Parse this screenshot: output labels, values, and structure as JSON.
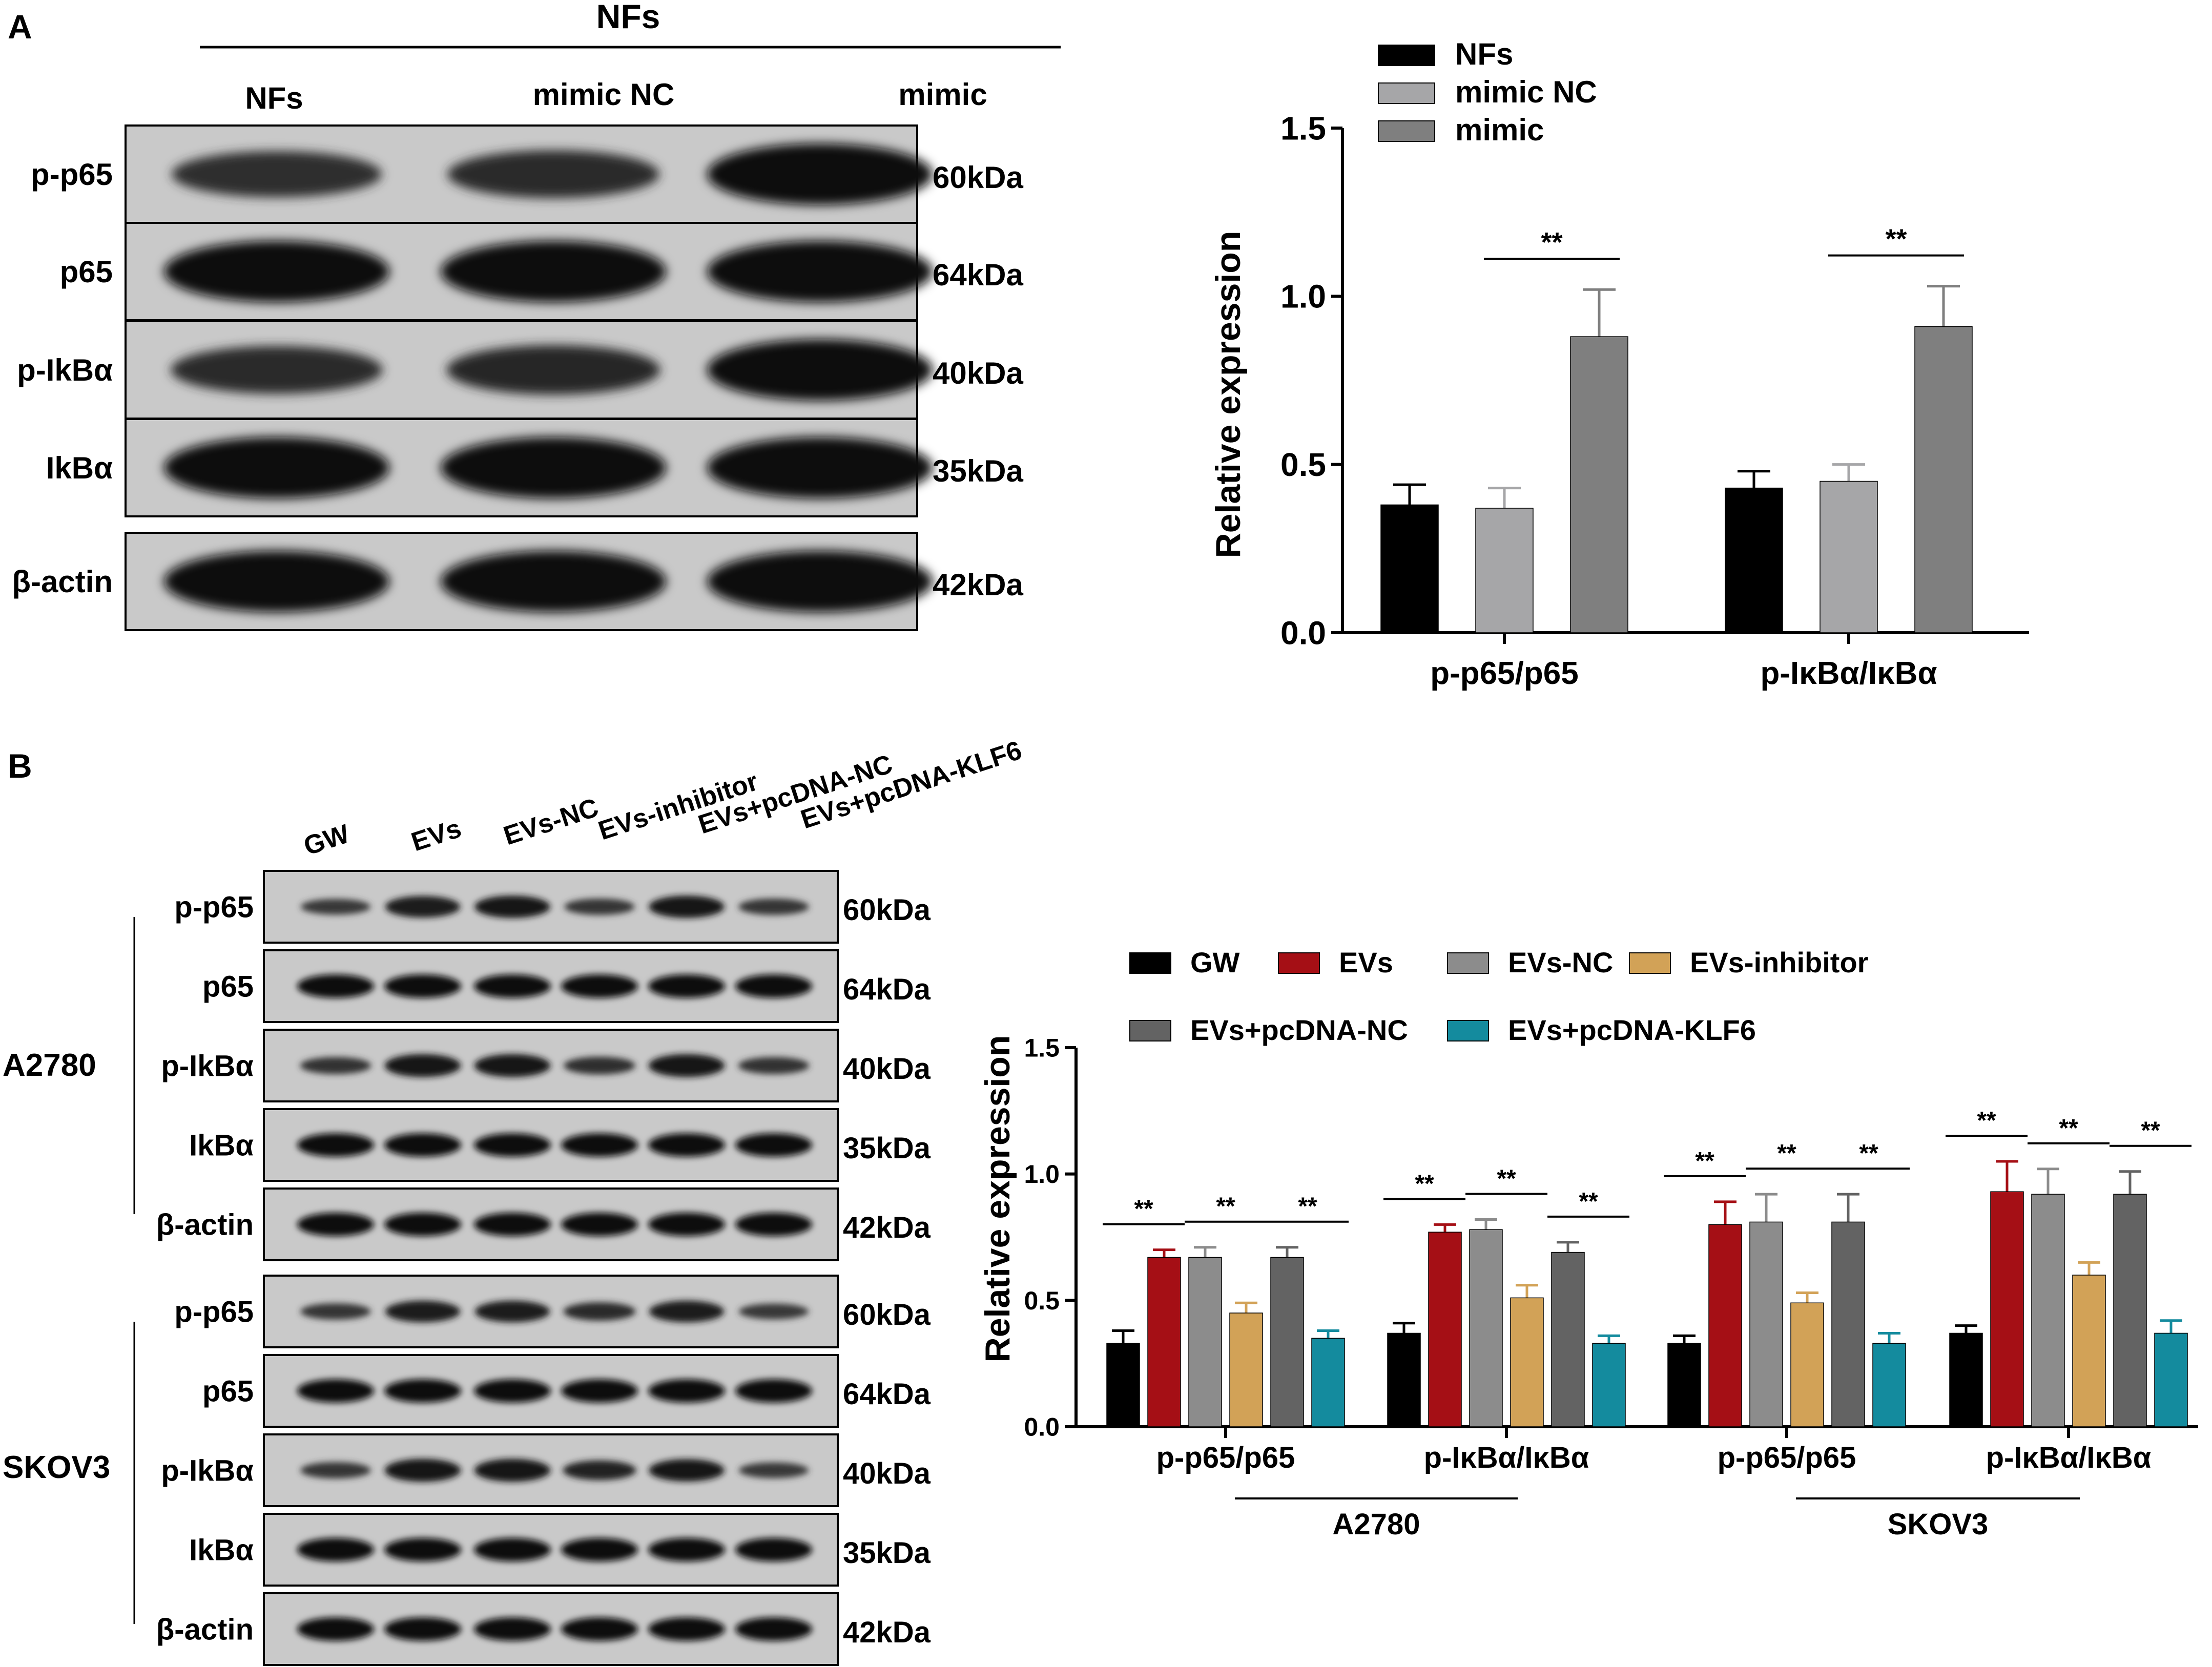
{
  "panel_a": {
    "letter": "A",
    "group_header": "NFs",
    "lane_labels": [
      "NFs",
      "mimic NC",
      "mimic"
    ],
    "blots": [
      {
        "label": "p-p65",
        "size": "60kDa",
        "intensity": [
          0.55,
          0.6,
          1.0
        ]
      },
      {
        "label": "p65",
        "size": "64kDa",
        "intensity": [
          1.0,
          1.0,
          1.0
        ]
      },
      {
        "label": "p-IkBα",
        "size": "40kDa",
        "intensity": [
          0.6,
          0.65,
          1.0
        ]
      },
      {
        "label": "IkBα",
        "size": "35kDa",
        "intensity": [
          1.0,
          1.0,
          1.0
        ]
      },
      {
        "label": "β-actin",
        "size": "42kDa",
        "intensity": [
          1.0,
          1.0,
          1.0
        ]
      }
    ]
  },
  "panel_b": {
    "letter": "B",
    "lane_labels": [
      "GW",
      "EVs",
      "EVs-NC",
      "EVs-inhibitor",
      "EVs+pcDNA-NC",
      "EVs+pcDNA-KLF6"
    ],
    "cell_lines": [
      {
        "name": "A2780",
        "blots": [
          {
            "label": "p-p65",
            "size": "60kDa",
            "intensity": [
              0.4,
              0.85,
              0.9,
              0.45,
              0.9,
              0.45
            ]
          },
          {
            "label": "p65",
            "size": "64kDa",
            "intensity": [
              1,
              1,
              1,
              1,
              1,
              1
            ]
          },
          {
            "label": "p-IkBα",
            "size": "40kDa",
            "intensity": [
              0.5,
              0.95,
              0.95,
              0.55,
              0.95,
              0.5
            ]
          },
          {
            "label": "IkBα",
            "size": "35kDa",
            "intensity": [
              1,
              1,
              1,
              1,
              1,
              1
            ]
          },
          {
            "label": "β-actin",
            "size": "42kDa",
            "intensity": [
              1,
              1,
              1,
              1,
              1,
              1
            ]
          }
        ]
      },
      {
        "name": "SKOV3",
        "blots": [
          {
            "label": "p-p65",
            "size": "60kDa",
            "intensity": [
              0.45,
              0.85,
              0.85,
              0.6,
              0.85,
              0.4
            ]
          },
          {
            "label": "p65",
            "size": "64kDa",
            "intensity": [
              1,
              1,
              1,
              1,
              1,
              1
            ]
          },
          {
            "label": "p-IkBα",
            "size": "40kDa",
            "intensity": [
              0.45,
              0.95,
              0.95,
              0.7,
              0.9,
              0.4
            ]
          },
          {
            "label": "IkBα",
            "size": "35kDa",
            "intensity": [
              1,
              1,
              1,
              1,
              1,
              1
            ]
          },
          {
            "label": "β-actin",
            "size": "42kDa",
            "intensity": [
              1,
              1,
              1,
              1,
              1,
              1
            ]
          }
        ]
      }
    ]
  },
  "chart_data": [
    {
      "type": "bar",
      "panel": "A",
      "title": "",
      "xlabel": "",
      "ylabel": "Relative expression",
      "ylim": [
        0,
        1.5
      ],
      "yticks": [
        "0.0",
        "0.5",
        "1.0",
        "1.5"
      ],
      "categories": [
        "p-p65/p65",
        "p-IκBα/IκBα"
      ],
      "series": [
        {
          "name": "NFs",
          "color": "#000000",
          "values": [
            0.38,
            0.43
          ],
          "errors": [
            0.06,
            0.05
          ]
        },
        {
          "name": "mimic NC",
          "color": "#a6a6a8",
          "values": [
            0.37,
            0.45
          ],
          "errors": [
            0.06,
            0.05
          ]
        },
        {
          "name": "mimic",
          "color": "#7f7f7f",
          "values": [
            0.88,
            0.91
          ],
          "errors": [
            0.14,
            0.12
          ]
        }
      ],
      "significance": [
        {
          "category": 0,
          "from_series": 1,
          "to_series": 2,
          "label": "**"
        },
        {
          "category": 1,
          "from_series": 1,
          "to_series": 2,
          "label": "**"
        }
      ],
      "legend_position": "top-left",
      "grid": false
    },
    {
      "type": "bar",
      "panel": "B",
      "title": "",
      "xlabel": "",
      "ylabel": "Relative expression",
      "ylim": [
        0,
        1.5
      ],
      "yticks": [
        "0.0",
        "0.5",
        "1.0",
        "1.5"
      ],
      "categories": [
        "p-p65/p65",
        "p-IκBα/IκBα",
        "p-p65/p65",
        "p-IκBα/IκBα"
      ],
      "category_groups": [
        {
          "name": "A2780",
          "categories": [
            0,
            1
          ]
        },
        {
          "name": "SKOV3",
          "categories": [
            2,
            3
          ]
        }
      ],
      "series": [
        {
          "name": "GW",
          "color": "#000000",
          "values": [
            0.33,
            0.37,
            0.33,
            0.37
          ],
          "errors": [
            0.05,
            0.04,
            0.03,
            0.03
          ]
        },
        {
          "name": "EVs",
          "color": "#a50f15",
          "values": [
            0.67,
            0.77,
            0.8,
            0.93
          ],
          "errors": [
            0.03,
            0.03,
            0.09,
            0.12
          ]
        },
        {
          "name": "EVs-NC",
          "color": "#8c8c8c",
          "values": [
            0.67,
            0.78,
            0.81,
            0.92
          ],
          "errors": [
            0.04,
            0.04,
            0.11,
            0.1
          ]
        },
        {
          "name": "EVs-inhibitor",
          "color": "#d2a257",
          "values": [
            0.45,
            0.51,
            0.49,
            0.6
          ],
          "errors": [
            0.04,
            0.05,
            0.04,
            0.05
          ]
        },
        {
          "name": "EVs+pcDNA-NC",
          "color": "#636363",
          "values": [
            0.67,
            0.69,
            0.81,
            0.92
          ],
          "errors": [
            0.04,
            0.04,
            0.11,
            0.09
          ]
        },
        {
          "name": "EVs+pcDNA-KLF6",
          "color": "#148b9e",
          "values": [
            0.35,
            0.33,
            0.33,
            0.37
          ],
          "errors": [
            0.03,
            0.03,
            0.04,
            0.05
          ]
        }
      ],
      "significance": [
        {
          "category": 0,
          "from_series": 0,
          "to_series": 1,
          "label": "**"
        },
        {
          "category": 0,
          "from_series": 2,
          "to_series": 3,
          "label": "**"
        },
        {
          "category": 0,
          "from_series": 4,
          "to_series": 5,
          "label": "**"
        },
        {
          "category": 1,
          "from_series": 0,
          "to_series": 1,
          "label": "**"
        },
        {
          "category": 1,
          "from_series": 2,
          "to_series": 3,
          "label": "**"
        },
        {
          "category": 1,
          "from_series": 4,
          "to_series": 5,
          "label": "**"
        },
        {
          "category": 2,
          "from_series": 0,
          "to_series": 1,
          "label": "**"
        },
        {
          "category": 2,
          "from_series": 2,
          "to_series": 3,
          "label": "**"
        },
        {
          "category": 2,
          "from_series": 4,
          "to_series": 5,
          "label": "**"
        },
        {
          "category": 3,
          "from_series": 0,
          "to_series": 1,
          "label": "**"
        },
        {
          "category": 3,
          "from_series": 2,
          "to_series": 3,
          "label": "**"
        },
        {
          "category": 3,
          "from_series": 4,
          "to_series": 5,
          "label": "**"
        }
      ],
      "legend_position": "top",
      "grid": false
    }
  ]
}
